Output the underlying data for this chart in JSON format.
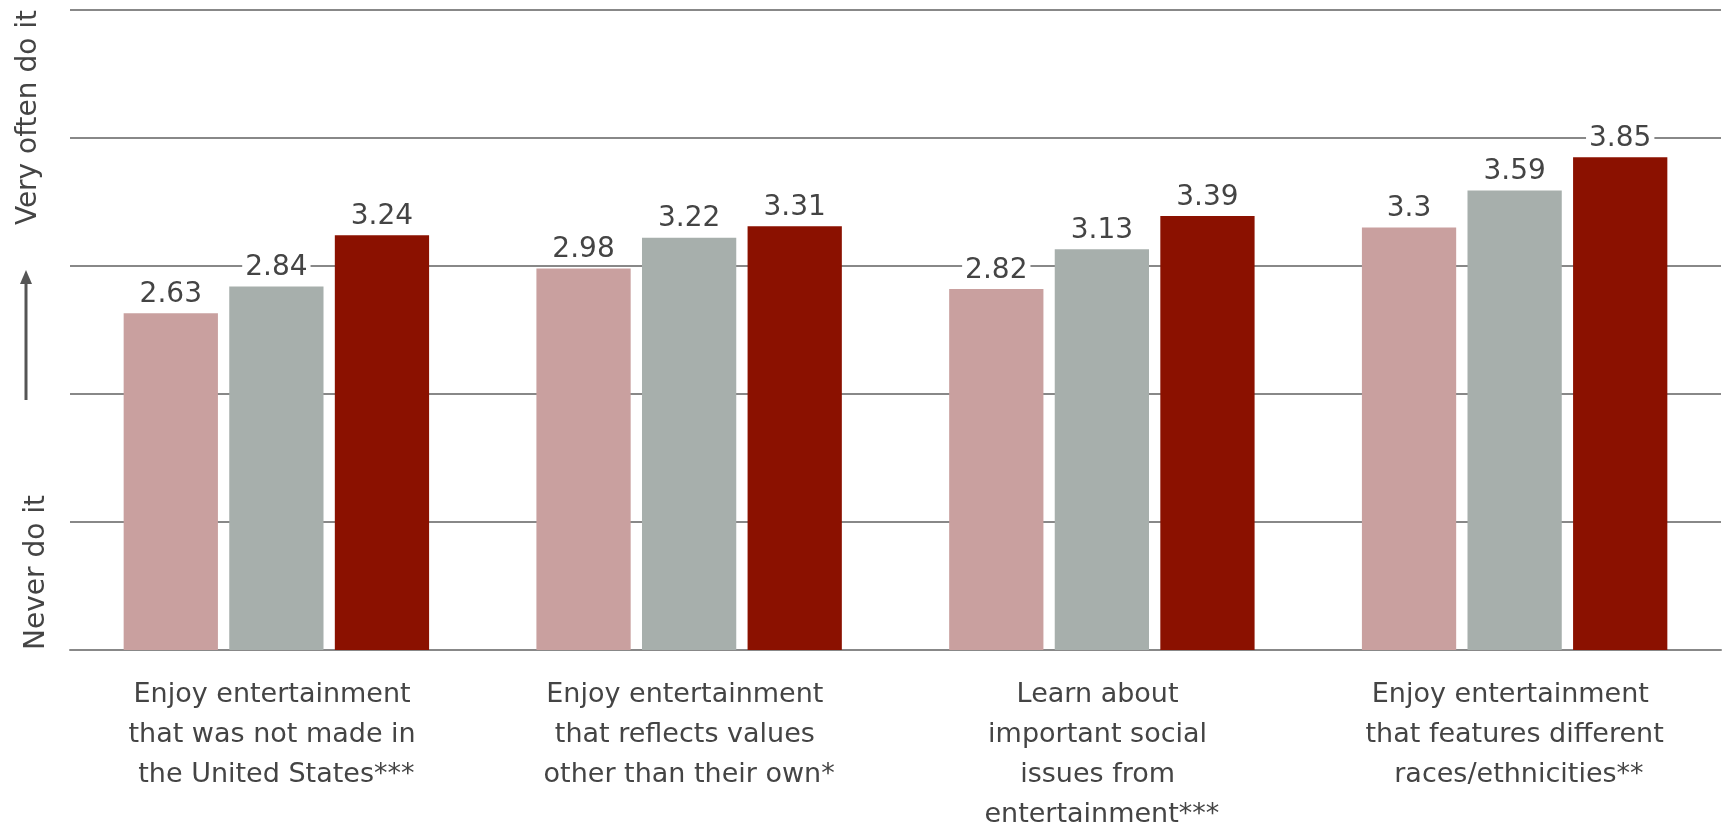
{
  "chart_data": {
    "type": "bar",
    "ylabel": "Never do it",
    "annotations": [
      "Very often do it"
    ],
    "categories": [
      "Enjoy entertainment that was not made in the United States***",
      "Enjoy entertainment that reflects values other than their own*",
      "Learn about important social issues from entertainment***",
      "Enjoy entertainment that features different races/ethnicities**"
    ],
    "series": [
      {
        "color": "#c9a09f",
        "values": [
          2.63,
          2.98,
          2.82,
          3.3
        ]
      },
      {
        "color": "#a7afac",
        "values": [
          2.84,
          3.22,
          3.13,
          3.59
        ]
      },
      {
        "color": "#8b1100",
        "values": [
          3.24,
          3.31,
          3.39,
          3.85
        ]
      }
    ],
    "ylim": [
      0,
      5
    ],
    "yticks": [
      {
        "value": 0,
        "label": null
      },
      {
        "value": 1,
        "label": null
      },
      {
        "value": 2,
        "label": null
      },
      {
        "value": 3,
        "label": null
      },
      {
        "value": 4,
        "label": null
      },
      {
        "value": 5,
        "label": null
      }
    ],
    "grid": "y",
    "data_labels": true
  }
}
